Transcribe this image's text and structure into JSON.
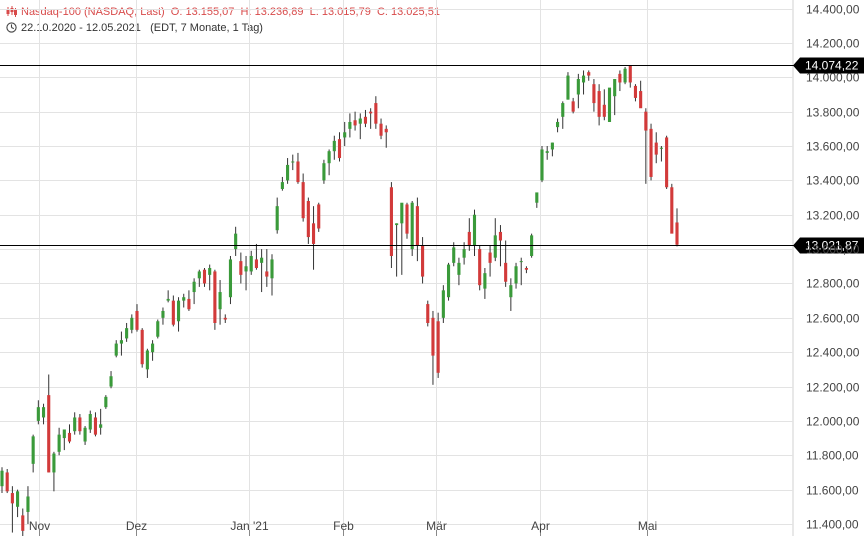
{
  "header": {
    "instrument": "Nasdaq-100 (NASDAQ, Last)",
    "open": "O: 13.155,07",
    "high": "H: 13.236,89",
    "low": "L: 13.015,79",
    "close": "C: 13.025,51",
    "range": "22.10.2020 - 12.05.2021",
    "info": "(EDT, 7 Monate, 1 Tag)"
  },
  "colors": {
    "up": "#3a9a3a",
    "down": "#d23a3a",
    "grid": "#e3e3e3",
    "ref_line": "#000000",
    "ref_box": "#000000"
  },
  "chart_data": {
    "type": "candlestick",
    "y_axis": {
      "position": "right",
      "range": [
        11330,
        14450
      ],
      "ticks": [
        "11.400,00",
        "11.600,00",
        "11.800,00",
        "12.000,00",
        "12.200,00",
        "12.400,00",
        "12.600,00",
        "12.800,00",
        "13.000,00",
        "13.200,00",
        "13.400,00",
        "13.600,00",
        "13.800,00",
        "14.000,00",
        "14.200,00",
        "14.400,00"
      ],
      "tick_values": [
        11400,
        11600,
        11800,
        12000,
        12200,
        12400,
        12600,
        12800,
        13000,
        13200,
        13400,
        13600,
        13800,
        14000,
        14200,
        14400
      ]
    },
    "x_axis": {
      "labels": [
        {
          "label": "Nov",
          "date": "2020-11-02"
        },
        {
          "label": "Dez",
          "date": "2020-12-01"
        },
        {
          "label": "Jan '21",
          "date": "2021-01-04"
        },
        {
          "label": "Feb",
          "date": "2021-02-01"
        },
        {
          "label": "Mär",
          "date": "2021-03-01"
        },
        {
          "label": "Apr",
          "date": "2021-04-01"
        },
        {
          "label": "Mai",
          "date": "2021-05-03"
        }
      ]
    },
    "grid": true,
    "reference_lines": [
      {
        "value": 14074.22,
        "label": "14.074,22"
      },
      {
        "value": 13021.87,
        "label": "13.021,87"
      }
    ],
    "candles": [
      {
        "o": 11620,
        "h": 11730,
        "l": 11580,
        "c": 11710
      },
      {
        "o": 11700,
        "h": 11720,
        "l": 11580,
        "c": 11590
      },
      {
        "o": 11580,
        "h": 11620,
        "l": 11350,
        "c": 11520
      },
      {
        "o": 11500,
        "h": 11600,
        "l": 11440,
        "c": 11590
      },
      {
        "o": 11450,
        "h": 11490,
        "l": 11330,
        "c": 11360
      },
      {
        "o": 11470,
        "h": 11620,
        "l": 11400,
        "c": 11560
      },
      {
        "o": 11750,
        "h": 11920,
        "l": 11700,
        "c": 11910
      },
      {
        "o": 12000,
        "h": 12120,
        "l": 11980,
        "c": 12080
      },
      {
        "o": 12020,
        "h": 12100,
        "l": 11980,
        "c": 12080
      },
      {
        "o": 12150,
        "h": 12270,
        "l": 11700,
        "c": 11700
      },
      {
        "o": 11700,
        "h": 11820,
        "l": 11590,
        "c": 11810
      },
      {
        "o": 11820,
        "h": 11960,
        "l": 11800,
        "c": 11920
      },
      {
        "o": 11900,
        "h": 11950,
        "l": 11830,
        "c": 11950
      },
      {
        "o": 11930,
        "h": 11980,
        "l": 11870,
        "c": 11880
      },
      {
        "o": 11940,
        "h": 12050,
        "l": 11920,
        "c": 12020
      },
      {
        "o": 12020,
        "h": 12040,
        "l": 11920,
        "c": 11940
      },
      {
        "o": 11880,
        "h": 11970,
        "l": 11860,
        "c": 11960
      },
      {
        "o": 11950,
        "h": 12060,
        "l": 11930,
        "c": 12040
      },
      {
        "o": 12020,
        "h": 12050,
        "l": 11910,
        "c": 11920
      },
      {
        "o": 11960,
        "h": 12070,
        "l": 11920,
        "c": 11980
      },
      {
        "o": 12080,
        "h": 12150,
        "l": 12070,
        "c": 12140
      },
      {
        "o": 12200,
        "h": 12290,
        "l": 12190,
        "c": 12260
      },
      {
        "o": 12380,
        "h": 12470,
        "l": 12370,
        "c": 12450
      },
      {
        "o": 12450,
        "h": 12520,
        "l": 12380,
        "c": 12470
      },
      {
        "o": 12480,
        "h": 12570,
        "l": 12460,
        "c": 12540
      },
      {
        "o": 12530,
        "h": 12620,
        "l": 12510,
        "c": 12600
      },
      {
        "o": 12640,
        "h": 12680,
        "l": 12520,
        "c": 12530
      },
      {
        "o": 12530,
        "h": 12540,
        "l": 12310,
        "c": 12330
      },
      {
        "o": 12300,
        "h": 12420,
        "l": 12250,
        "c": 12410
      },
      {
        "o": 12400,
        "h": 12470,
        "l": 12350,
        "c": 12450
      },
      {
        "o": 12490,
        "h": 12590,
        "l": 12480,
        "c": 12580
      },
      {
        "o": 12600,
        "h": 12660,
        "l": 12560,
        "c": 12640
      },
      {
        "o": 12700,
        "h": 12760,
        "l": 12690,
        "c": 12710
      },
      {
        "o": 12700,
        "h": 12730,
        "l": 12550,
        "c": 12560
      },
      {
        "o": 12580,
        "h": 12720,
        "l": 12520,
        "c": 12700
      },
      {
        "o": 12700,
        "h": 12740,
        "l": 12660,
        "c": 12720
      },
      {
        "o": 12710,
        "h": 12760,
        "l": 12640,
        "c": 12650
      },
      {
        "o": 12750,
        "h": 12830,
        "l": 12680,
        "c": 12810
      },
      {
        "o": 12830,
        "h": 12880,
        "l": 12780,
        "c": 12870
      },
      {
        "o": 12880,
        "h": 12890,
        "l": 12780,
        "c": 12800
      },
      {
        "o": 12850,
        "h": 12910,
        "l": 12760,
        "c": 12890
      },
      {
        "o": 12870,
        "h": 12880,
        "l": 12530,
        "c": 12570
      },
      {
        "o": 12650,
        "h": 12820,
        "l": 12560,
        "c": 12750
      },
      {
        "o": 12600,
        "h": 12620,
        "l": 12570,
        "c": 12590
      },
      {
        "o": 12720,
        "h": 12960,
        "l": 12680,
        "c": 12940
      },
      {
        "o": 13000,
        "h": 13130,
        "l": 12960,
        "c": 13090
      },
      {
        "o": 12930,
        "h": 12980,
        "l": 12800,
        "c": 12850
      },
      {
        "o": 12870,
        "h": 12960,
        "l": 12760,
        "c": 12900
      },
      {
        "o": 12870,
        "h": 12990,
        "l": 12850,
        "c": 12960
      },
      {
        "o": 12940,
        "h": 13030,
        "l": 12880,
        "c": 12890
      },
      {
        "o": 12920,
        "h": 13000,
        "l": 12750,
        "c": 12950
      },
      {
        "o": 12870,
        "h": 13000,
        "l": 12780,
        "c": 12840
      },
      {
        "o": 12830,
        "h": 12970,
        "l": 12730,
        "c": 12940
      },
      {
        "o": 13110,
        "h": 13300,
        "l": 13090,
        "c": 13250
      },
      {
        "o": 13350,
        "h": 13420,
        "l": 13340,
        "c": 13390
      },
      {
        "o": 13400,
        "h": 13530,
        "l": 13380,
        "c": 13490
      },
      {
        "o": 13510,
        "h": 13550,
        "l": 13460,
        "c": 13510
      },
      {
        "o": 13510,
        "h": 13560,
        "l": 13380,
        "c": 13390
      },
      {
        "o": 13390,
        "h": 13440,
        "l": 13160,
        "c": 13180
      },
      {
        "o": 13280,
        "h": 13300,
        "l": 13030,
        "c": 13070
      },
      {
        "o": 13150,
        "h": 13250,
        "l": 12880,
        "c": 13030
      },
      {
        "o": 13260,
        "h": 13270,
        "l": 13100,
        "c": 13120
      },
      {
        "o": 13400,
        "h": 13520,
        "l": 13380,
        "c": 13500
      },
      {
        "o": 13500,
        "h": 13580,
        "l": 13430,
        "c": 13570
      },
      {
        "o": 13570,
        "h": 13660,
        "l": 13520,
        "c": 13630
      },
      {
        "o": 13640,
        "h": 13680,
        "l": 13510,
        "c": 13530
      },
      {
        "o": 13650,
        "h": 13740,
        "l": 13600,
        "c": 13680
      },
      {
        "o": 13700,
        "h": 13790,
        "l": 13650,
        "c": 13740
      },
      {
        "o": 13750,
        "h": 13800,
        "l": 13690,
        "c": 13720
      },
      {
        "o": 13730,
        "h": 13790,
        "l": 13640,
        "c": 13760
      },
      {
        "o": 13770,
        "h": 13810,
        "l": 13710,
        "c": 13730
      },
      {
        "o": 13800,
        "h": 13820,
        "l": 13700,
        "c": 13790
      },
      {
        "o": 13850,
        "h": 13890,
        "l": 13700,
        "c": 13730
      },
      {
        "o": 13730,
        "h": 13760,
        "l": 13640,
        "c": 13660
      },
      {
        "o": 13700,
        "h": 13720,
        "l": 13590,
        "c": 13680
      },
      {
        "o": 13360,
        "h": 13390,
        "l": 12890,
        "c": 12960
      },
      {
        "o": 13140,
        "h": 13150,
        "l": 12840,
        "c": 13150
      },
      {
        "o": 13150,
        "h": 13240,
        "l": 12850,
        "c": 13270
      },
      {
        "o": 13260,
        "h": 13270,
        "l": 13060,
        "c": 13090
      },
      {
        "o": 13000,
        "h": 13280,
        "l": 12960,
        "c": 13270
      },
      {
        "o": 13250,
        "h": 13300,
        "l": 12930,
        "c": 13020
      },
      {
        "o": 13020,
        "h": 13070,
        "l": 12800,
        "c": 12840
      },
      {
        "o": 12680,
        "h": 12700,
        "l": 12550,
        "c": 12570
      },
      {
        "o": 12600,
        "h": 12640,
        "l": 12210,
        "c": 12380
      },
      {
        "o": 12580,
        "h": 12630,
        "l": 12250,
        "c": 12280
      },
      {
        "o": 12600,
        "h": 12790,
        "l": 12570,
        "c": 12760
      },
      {
        "o": 12720,
        "h": 12920,
        "l": 12700,
        "c": 12910
      },
      {
        "o": 12920,
        "h": 13040,
        "l": 12900,
        "c": 13010
      },
      {
        "o": 12850,
        "h": 12950,
        "l": 12790,
        "c": 12920
      },
      {
        "o": 12950,
        "h": 13040,
        "l": 12910,
        "c": 13000
      },
      {
        "o": 13100,
        "h": 13180,
        "l": 12990,
        "c": 13020
      },
      {
        "o": 13020,
        "h": 13230,
        "l": 12960,
        "c": 13200
      },
      {
        "o": 13000,
        "h": 13020,
        "l": 12760,
        "c": 12790
      },
      {
        "o": 12770,
        "h": 12890,
        "l": 12710,
        "c": 12860
      },
      {
        "o": 12980,
        "h": 13020,
        "l": 12840,
        "c": 12920
      },
      {
        "o": 12950,
        "h": 13180,
        "l": 12930,
        "c": 13080
      },
      {
        "o": 13100,
        "h": 13140,
        "l": 12900,
        "c": 13050
      },
      {
        "o": 12920,
        "h": 13050,
        "l": 12780,
        "c": 12810
      },
      {
        "o": 12720,
        "h": 12830,
        "l": 12640,
        "c": 12790
      },
      {
        "o": 12800,
        "h": 12920,
        "l": 12770,
        "c": 12900
      },
      {
        "o": 12930,
        "h": 12950,
        "l": 12790,
        "c": 12930
      },
      {
        "o": 12890,
        "h": 12900,
        "l": 12860,
        "c": 12880
      },
      {
        "o": 12960,
        "h": 13090,
        "l": 12950,
        "c": 13080
      },
      {
        "o": 13270,
        "h": 13320,
        "l": 13240,
        "c": 13330
      },
      {
        "o": 13400,
        "h": 13600,
        "l": 13390,
        "c": 13580
      },
      {
        "o": 13560,
        "h": 13600,
        "l": 13520,
        "c": 13570
      },
      {
        "o": 13580,
        "h": 13620,
        "l": 13540,
        "c": 13620
      },
      {
        "o": 13710,
        "h": 13760,
        "l": 13680,
        "c": 13740
      },
      {
        "o": 13770,
        "h": 13860,
        "l": 13700,
        "c": 13850
      },
      {
        "o": 13870,
        "h": 14030,
        "l": 13870,
        "c": 14010
      },
      {
        "o": 13860,
        "h": 13880,
        "l": 13790,
        "c": 13800
      },
      {
        "o": 13900,
        "h": 14020,
        "l": 13820,
        "c": 13990
      },
      {
        "o": 13970,
        "h": 14040,
        "l": 13900,
        "c": 14010
      },
      {
        "o": 14030,
        "h": 14040,
        "l": 13980,
        "c": 14010
      },
      {
        "o": 13960,
        "h": 13990,
        "l": 13800,
        "c": 13850
      },
      {
        "o": 13920,
        "h": 13960,
        "l": 13720,
        "c": 13770
      },
      {
        "o": 13840,
        "h": 13930,
        "l": 13750,
        "c": 13770
      },
      {
        "o": 13740,
        "h": 13920,
        "l": 13740,
        "c": 13940
      },
      {
        "o": 13890,
        "h": 13980,
        "l": 13780,
        "c": 13990
      },
      {
        "o": 14020,
        "h": 14040,
        "l": 13920,
        "c": 13970
      },
      {
        "o": 13970,
        "h": 14060,
        "l": 13960,
        "c": 14050
      },
      {
        "o": 14070,
        "h": 14070,
        "l": 13940,
        "c": 13970
      },
      {
        "o": 13950,
        "h": 13960,
        "l": 13860,
        "c": 13880
      },
      {
        "o": 13920,
        "h": 13980,
        "l": 13840,
        "c": 13820
      },
      {
        "o": 13800,
        "h": 13820,
        "l": 13380,
        "c": 13690
      },
      {
        "o": 13700,
        "h": 13730,
        "l": 13400,
        "c": 13420
      },
      {
        "o": 13620,
        "h": 13680,
        "l": 13500,
        "c": 13550
      },
      {
        "o": 13590,
        "h": 13600,
        "l": 13510,
        "c": 13590
      },
      {
        "o": 13650,
        "h": 13660,
        "l": 13350,
        "c": 13360
      },
      {
        "o": 13360,
        "h": 13380,
        "l": 13100,
        "c": 13090
      },
      {
        "o": 13155.07,
        "h": 13236.89,
        "l": 13015.79,
        "c": 13025.51
      }
    ]
  }
}
